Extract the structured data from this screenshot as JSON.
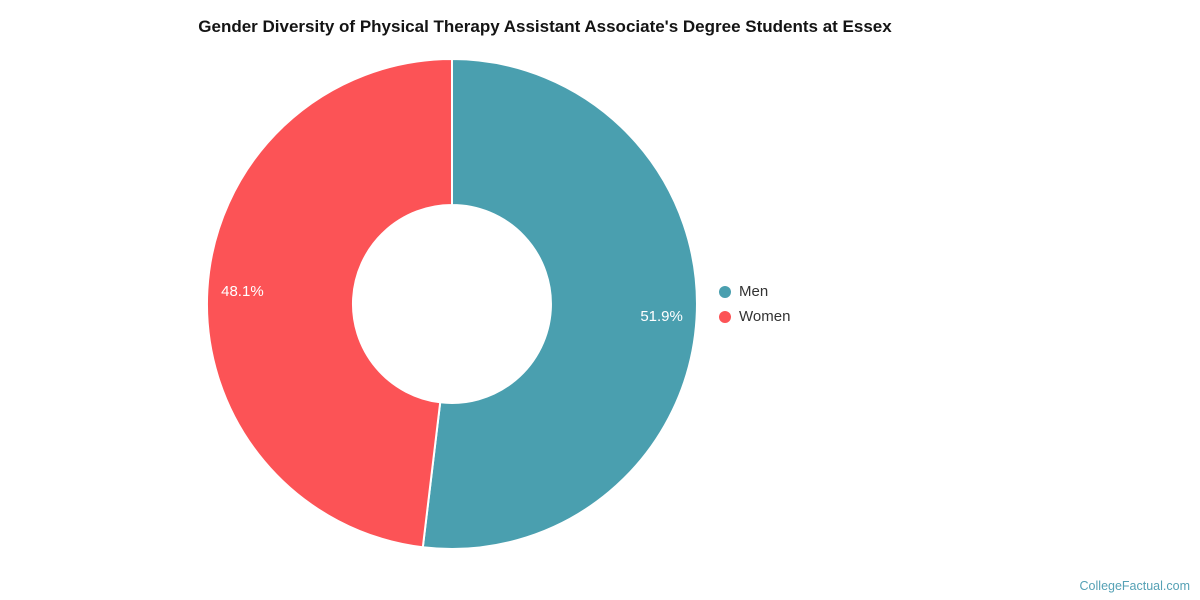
{
  "title": "Gender Diversity of Physical Therapy Assistant Associate's Degree Students at Essex",
  "watermark": {
    "label": "CollegeFactual.com",
    "color": "#55A1B5"
  },
  "legend": {
    "position": "right",
    "items": [
      {
        "label": "Men",
        "color": "#4A9FAF"
      },
      {
        "label": "Women",
        "color": "#FC5356"
      }
    ]
  },
  "chart_data": {
    "type": "pie",
    "subtype": "donut",
    "title": "Gender Diversity of Physical Therapy Assistant Associate's Degree Students at Essex",
    "labels": [
      "Men",
      "Women"
    ],
    "values": [
      51.9,
      48.1
    ],
    "value_labels": [
      "51.9%",
      "48.1%"
    ],
    "colors": [
      "#4A9FAF",
      "#FC5356"
    ],
    "start_angle_deg": 0,
    "direction": "clockwise",
    "inner_radius_ratio": 0.405,
    "legend_position": "right",
    "grid": false
  }
}
